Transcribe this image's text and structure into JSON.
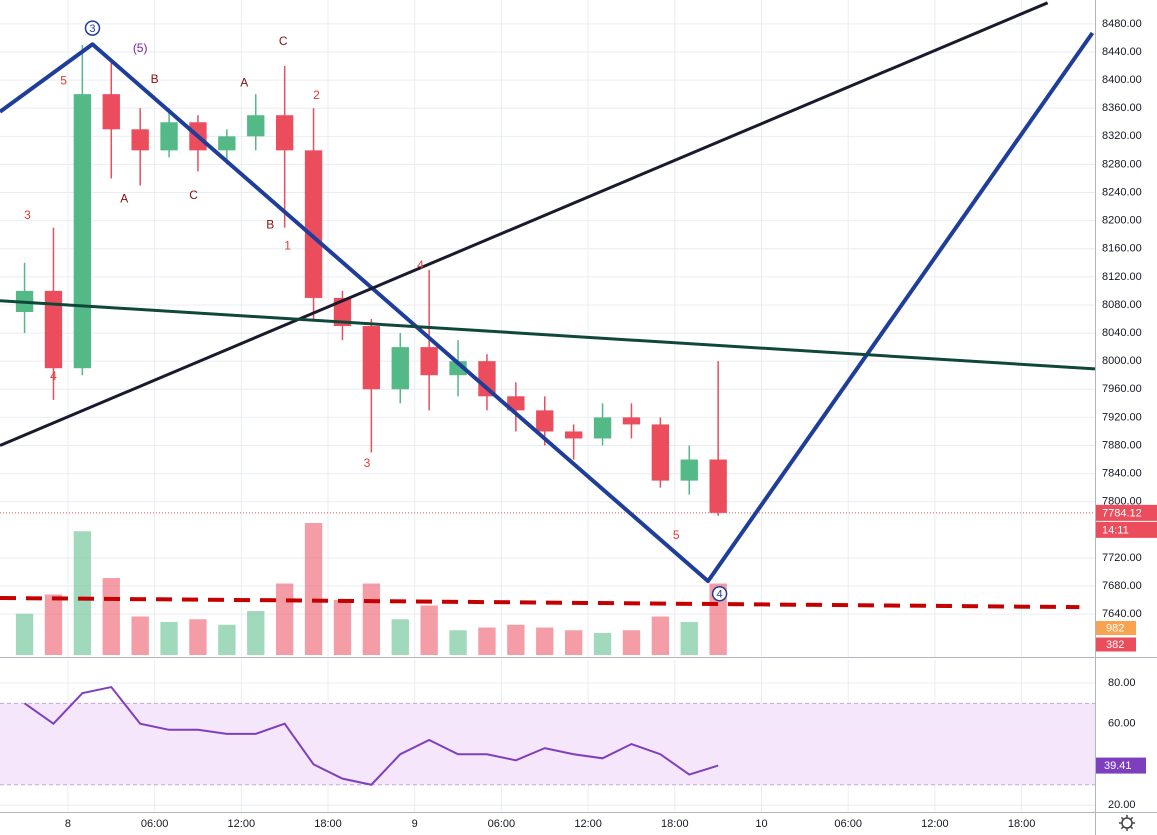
{
  "chart_data": {
    "type": "candlestick",
    "x": [
      -3,
      -1,
      1,
      3,
      5,
      7,
      9,
      11,
      13,
      15,
      17,
      19,
      21,
      23,
      25,
      27,
      29,
      31,
      33,
      35,
      37,
      39,
      41,
      43,
      45
    ],
    "open": [
      8070,
      8100,
      7990,
      8380,
      8330,
      8300,
      8340,
      8300,
      8320,
      8350,
      8300,
      8090,
      8050,
      7960,
      8020,
      7980,
      8000,
      7950,
      7930,
      7900,
      7890,
      7920,
      7910,
      7830,
      7860
    ],
    "high": [
      8140,
      8190,
      8450,
      8430,
      8360,
      8360,
      8350,
      8330,
      8380,
      8420,
      8360,
      8100,
      8060,
      8040,
      8130,
      8030,
      8010,
      7970,
      7950,
      7910,
      7940,
      7940,
      7920,
      7880,
      8000
    ],
    "low": [
      8040,
      7945,
      7980,
      8260,
      8250,
      8290,
      8270,
      8280,
      8300,
      8190,
      8060,
      8030,
      7870,
      7940,
      7930,
      7950,
      7930,
      7900,
      7880,
      7860,
      7880,
      7890,
      7820,
      7810,
      7780
    ],
    "close": [
      8100,
      7990,
      8380,
      8330,
      8300,
      8340,
      8300,
      8320,
      8350,
      8300,
      8090,
      8050,
      7960,
      8020,
      7980,
      8000,
      7950,
      7930,
      7900,
      7890,
      7920,
      7910,
      7830,
      7860,
      7784.12
    ],
    "up_color": "#53b987",
    "down_color": "#eb4d5c",
    "xlim": [
      -4.7,
      71.08
    ],
    "xticks": [
      {
        "value": 0,
        "label": "8"
      },
      {
        "value": 6,
        "label": "06:00"
      },
      {
        "value": 12,
        "label": "12:00"
      },
      {
        "value": 18,
        "label": "18:00"
      },
      {
        "value": 24,
        "label": "9"
      },
      {
        "value": 30,
        "label": "06:00"
      },
      {
        "value": 36,
        "label": "12:00"
      },
      {
        "value": 42,
        "label": "18:00"
      },
      {
        "value": 48,
        "label": "10"
      },
      {
        "value": 54,
        "label": "06:00"
      },
      {
        "value": 60,
        "label": "12:00"
      },
      {
        "value": 66,
        "label": "18:00"
      }
    ],
    "ylim": [
      7579,
      8514
    ],
    "yticks": [
      {
        "value": 7640,
        "label": "7640.00"
      },
      {
        "value": 7680,
        "label": "7680.00"
      },
      {
        "value": 7720,
        "label": "7720.00"
      },
      {
        "value": 7800,
        "label": "7800.00"
      },
      {
        "value": 7840,
        "label": "7840.00"
      },
      {
        "value": 7880,
        "label": "7880.00"
      },
      {
        "value": 7920,
        "label": "7920.00"
      },
      {
        "value": 7960,
        "label": "7960.00"
      },
      {
        "value": 8000,
        "label": "8000.00"
      },
      {
        "value": 8040,
        "label": "8040.00"
      },
      {
        "value": 8080,
        "label": "8080.00"
      },
      {
        "value": 8120,
        "label": "8120.00"
      },
      {
        "value": 8160,
        "label": "8160.00"
      },
      {
        "value": 8200,
        "label": "8200.00"
      },
      {
        "value": 8240,
        "label": "8240.00"
      },
      {
        "value": 8280,
        "label": "8280.00"
      },
      {
        "value": 8320,
        "label": "8320.00"
      },
      {
        "value": 8360,
        "label": "8360.00"
      },
      {
        "value": 8400,
        "label": "8400.00"
      },
      {
        "value": 8440,
        "label": "8440.00"
      },
      {
        "value": 8480,
        "label": "8480.00"
      }
    ],
    "grid": true,
    "last_price": 7784.12,
    "countdown": "14:11",
    "volume": {
      "values": [
        1500,
        2200,
        4500,
        2800,
        1400,
        1200,
        1300,
        1100,
        1600,
        2600,
        4800,
        2000,
        2600,
        1300,
        1800,
        900,
        1000,
        1100,
        1000,
        900,
        800,
        900,
        1400,
        1200,
        2600
      ],
      "ylim": [
        0,
        6000
      ],
      "tags": [
        {
          "value": 982,
          "color": "#f7a350"
        },
        {
          "value": 382,
          "color": "#eb4d5c"
        }
      ]
    },
    "rsi": {
      "values": [
        70,
        60,
        75,
        78,
        60,
        57,
        57,
        55,
        55,
        60,
        40,
        33,
        30,
        45,
        52,
        45,
        45,
        42,
        48,
        45,
        43,
        50,
        45,
        35,
        39.41
      ],
      "color": "#7e3fbf",
      "ylim": [
        16.6,
        91.3
      ],
      "yticks": [
        {
          "value": 20,
          "label": "20.00"
        },
        {
          "value": 60,
          "label": "60.00"
        },
        {
          "value": 80,
          "label": "80.00"
        }
      ],
      "band": [
        30,
        70
      ]
    },
    "trend_lines": [
      {
        "color": "#1f3e9a",
        "width": 4,
        "dash": false,
        "points": [
          [
            -4.7,
            8355
          ],
          [
            1.7,
            8451
          ],
          [
            44.3,
            7687
          ],
          [
            70.9,
            8467
          ]
        ]
      },
      {
        "color": "#1a1a2e",
        "width": 3,
        "dash": false,
        "points": [
          [
            -4.7,
            7880
          ],
          [
            67.8,
            8510
          ]
        ]
      },
      {
        "color": "#10473a",
        "width": 3,
        "dash": false,
        "points": [
          [
            -4.7,
            8086
          ],
          [
            71.08,
            7989
          ]
        ]
      },
      {
        "color": "#c40000",
        "width": 4,
        "dash": true,
        "points": [
          [
            -4.7,
            7663
          ],
          [
            70,
            7650
          ]
        ]
      }
    ],
    "wave_labels": [
      {
        "text": "3",
        "x": 1.7,
        "y": 8474,
        "color": "#1f3e9a",
        "circled": true
      },
      {
        "text": "(5)",
        "x": 5.0,
        "y": 8446,
        "color": "#7b1fa2",
        "circled": false
      },
      {
        "text": "5",
        "x": -0.3,
        "y": 8400,
        "color": "#e53935",
        "circled": false
      },
      {
        "text": "B",
        "x": 6.0,
        "y": 8402,
        "color": "#880e0e",
        "circled": false
      },
      {
        "text": "A",
        "x": 12.2,
        "y": 8397,
        "color": "#880e0e",
        "circled": false
      },
      {
        "text": "C",
        "x": 14.9,
        "y": 8456,
        "color": "#880e0e",
        "circled": false
      },
      {
        "text": "2",
        "x": 17.2,
        "y": 8379,
        "color": "#e53935",
        "circled": false
      },
      {
        "text": "A",
        "x": 3.9,
        "y": 8232,
        "color": "#880e0e",
        "circled": false
      },
      {
        "text": "C",
        "x": 8.7,
        "y": 8237,
        "color": "#880e0e",
        "circled": false
      },
      {
        "text": "B",
        "x": 14.0,
        "y": 8195,
        "color": "#880e0e",
        "circled": false
      },
      {
        "text": "1",
        "x": 15.2,
        "y": 8165,
        "color": "#e53935",
        "circled": false
      },
      {
        "text": "3",
        "x": -2.8,
        "y": 8208,
        "color": "#e53935",
        "circled": false
      },
      {
        "text": "4",
        "x": -1.0,
        "y": 7979,
        "color": "#e53935",
        "circled": false
      },
      {
        "text": "3",
        "x": 20.7,
        "y": 7855,
        "color": "#e53935",
        "circled": false
      },
      {
        "text": "4",
        "x": 24.4,
        "y": 8137,
        "color": "#e53935",
        "circled": false
      },
      {
        "text": "5",
        "x": 42.1,
        "y": 7753,
        "color": "#e53935",
        "circled": false
      },
      {
        "text": "4",
        "x": 45.1,
        "y": 7669,
        "color": "#1f3e9a",
        "circled": true
      }
    ]
  }
}
